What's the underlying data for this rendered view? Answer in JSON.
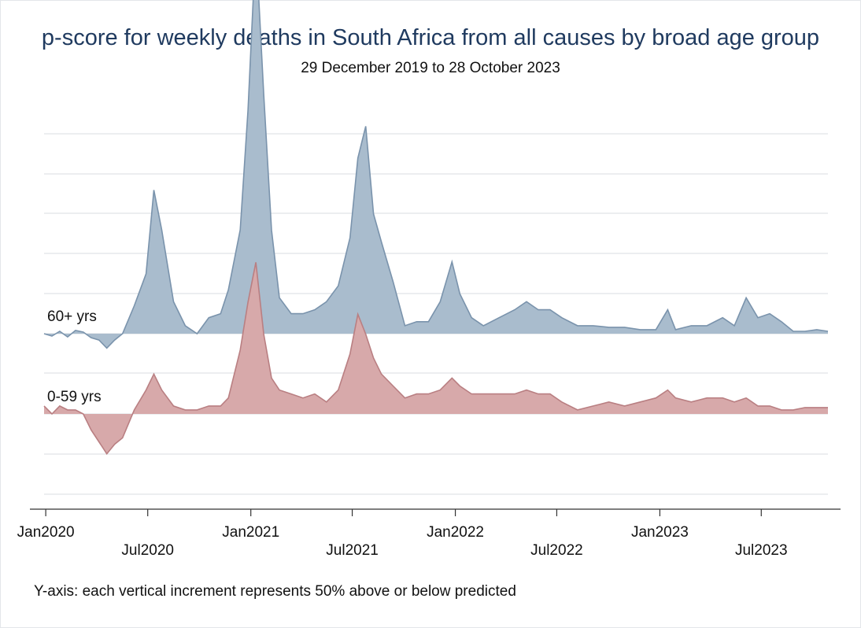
{
  "chart_data": {
    "type": "area",
    "title": "p-score for weekly deaths in South Africa from all causes by broad age group",
    "subtitle": "29 December 2019 to 28 October 2023",
    "note": "Y-axis: each vertical increment represents 50% above or below predicted",
    "x_range": [
      "2019-12-29",
      "2023-10-28"
    ],
    "x_ticks": [
      "Jan2020",
      "Jul2020",
      "Jan2021",
      "Jul2021",
      "Jan2022",
      "Jul2022",
      "Jan2023",
      "Jul2023"
    ],
    "y_increment_percent": 50,
    "grid": true,
    "series": [
      {
        "name": "60+ yrs",
        "color": "#a9bccd",
        "line_color": "#7a93ac",
        "points": [
          [
            "2019-12-29",
            0
          ],
          [
            "2020-01-12",
            -3
          ],
          [
            "2020-01-26",
            3
          ],
          [
            "2020-02-09",
            -4
          ],
          [
            "2020-02-23",
            4
          ],
          [
            "2020-03-08",
            2
          ],
          [
            "2020-03-22",
            -5
          ],
          [
            "2020-04-05",
            -8
          ],
          [
            "2020-04-19",
            -18
          ],
          [
            "2020-05-03",
            -8
          ],
          [
            "2020-05-17",
            0
          ],
          [
            "2020-06-07",
            35
          ],
          [
            "2020-06-28",
            75
          ],
          [
            "2020-07-12",
            180
          ],
          [
            "2020-07-26",
            130
          ],
          [
            "2020-08-16",
            40
          ],
          [
            "2020-09-06",
            10
          ],
          [
            "2020-09-27",
            0
          ],
          [
            "2020-10-18",
            20
          ],
          [
            "2020-11-08",
            25
          ],
          [
            "2020-11-22",
            55
          ],
          [
            "2020-12-13",
            130
          ],
          [
            "2020-12-27",
            280
          ],
          [
            "2021-01-10",
            490
          ],
          [
            "2021-01-24",
            300
          ],
          [
            "2021-02-07",
            130
          ],
          [
            "2021-02-21",
            45
          ],
          [
            "2021-03-14",
            25
          ],
          [
            "2021-04-04",
            25
          ],
          [
            "2021-04-25",
            30
          ],
          [
            "2021-05-16",
            40
          ],
          [
            "2021-06-06",
            60
          ],
          [
            "2021-06-27",
            120
          ],
          [
            "2021-07-11",
            220
          ],
          [
            "2021-07-25",
            260
          ],
          [
            "2021-08-08",
            150
          ],
          [
            "2021-08-22",
            115
          ],
          [
            "2021-09-12",
            65
          ],
          [
            "2021-10-03",
            10
          ],
          [
            "2021-10-24",
            15
          ],
          [
            "2021-11-14",
            15
          ],
          [
            "2021-12-05",
            40
          ],
          [
            "2021-12-26",
            90
          ],
          [
            "2022-01-09",
            50
          ],
          [
            "2022-01-30",
            20
          ],
          [
            "2022-02-20",
            10
          ],
          [
            "2022-03-20",
            20
          ],
          [
            "2022-04-17",
            30
          ],
          [
            "2022-05-08",
            40
          ],
          [
            "2022-05-29",
            30
          ],
          [
            "2022-06-19",
            30
          ],
          [
            "2022-07-10",
            20
          ],
          [
            "2022-08-07",
            10
          ],
          [
            "2022-09-04",
            10
          ],
          [
            "2022-10-02",
            8
          ],
          [
            "2022-10-30",
            8
          ],
          [
            "2022-11-27",
            5
          ],
          [
            "2022-12-25",
            5
          ],
          [
            "2023-01-15",
            30
          ],
          [
            "2023-01-29",
            5
          ],
          [
            "2023-02-26",
            10
          ],
          [
            "2023-03-26",
            10
          ],
          [
            "2023-04-23",
            20
          ],
          [
            "2023-05-14",
            10
          ],
          [
            "2023-06-04",
            45
          ],
          [
            "2023-06-25",
            20
          ],
          [
            "2023-07-16",
            25
          ],
          [
            "2023-08-06",
            15
          ],
          [
            "2023-08-27",
            3
          ],
          [
            "2023-09-17",
            3
          ],
          [
            "2023-10-08",
            5
          ],
          [
            "2023-10-28",
            3
          ]
        ]
      },
      {
        "name": "0-59 yrs",
        "color": "#d7a9aa",
        "line_color": "#b97f82",
        "points": [
          [
            "2019-12-29",
            10
          ],
          [
            "2020-01-12",
            0
          ],
          [
            "2020-01-26",
            10
          ],
          [
            "2020-02-09",
            5
          ],
          [
            "2020-02-23",
            5
          ],
          [
            "2020-03-08",
            0
          ],
          [
            "2020-03-22",
            -20
          ],
          [
            "2020-04-05",
            -35
          ],
          [
            "2020-04-19",
            -50
          ],
          [
            "2020-05-03",
            -38
          ],
          [
            "2020-05-17",
            -30
          ],
          [
            "2020-06-07",
            5
          ],
          [
            "2020-06-28",
            30
          ],
          [
            "2020-07-12",
            50
          ],
          [
            "2020-07-26",
            30
          ],
          [
            "2020-08-16",
            10
          ],
          [
            "2020-09-06",
            5
          ],
          [
            "2020-09-27",
            5
          ],
          [
            "2020-10-18",
            10
          ],
          [
            "2020-11-08",
            10
          ],
          [
            "2020-11-22",
            20
          ],
          [
            "2020-12-13",
            80
          ],
          [
            "2020-12-27",
            140
          ],
          [
            "2021-01-10",
            190
          ],
          [
            "2021-01-24",
            100
          ],
          [
            "2021-02-07",
            45
          ],
          [
            "2021-02-21",
            30
          ],
          [
            "2021-03-14",
            25
          ],
          [
            "2021-04-04",
            20
          ],
          [
            "2021-04-25",
            25
          ],
          [
            "2021-05-16",
            15
          ],
          [
            "2021-06-06",
            30
          ],
          [
            "2021-06-27",
            75
          ],
          [
            "2021-07-11",
            125
          ],
          [
            "2021-07-25",
            100
          ],
          [
            "2021-08-08",
            70
          ],
          [
            "2021-08-22",
            50
          ],
          [
            "2021-09-12",
            35
          ],
          [
            "2021-10-03",
            20
          ],
          [
            "2021-10-24",
            25
          ],
          [
            "2021-11-14",
            25
          ],
          [
            "2021-12-05",
            30
          ],
          [
            "2021-12-26",
            45
          ],
          [
            "2022-01-09",
            35
          ],
          [
            "2022-01-30",
            25
          ],
          [
            "2022-02-20",
            25
          ],
          [
            "2022-03-20",
            25
          ],
          [
            "2022-04-17",
            25
          ],
          [
            "2022-05-08",
            30
          ],
          [
            "2022-05-29",
            25
          ],
          [
            "2022-06-19",
            25
          ],
          [
            "2022-07-10",
            15
          ],
          [
            "2022-08-07",
            5
          ],
          [
            "2022-09-04",
            10
          ],
          [
            "2022-10-02",
            15
          ],
          [
            "2022-10-30",
            10
          ],
          [
            "2022-11-27",
            15
          ],
          [
            "2022-12-25",
            20
          ],
          [
            "2023-01-15",
            30
          ],
          [
            "2023-01-29",
            20
          ],
          [
            "2023-02-26",
            15
          ],
          [
            "2023-03-26",
            20
          ],
          [
            "2023-04-23",
            20
          ],
          [
            "2023-05-14",
            15
          ],
          [
            "2023-06-04",
            20
          ],
          [
            "2023-06-25",
            10
          ],
          [
            "2023-07-16",
            10
          ],
          [
            "2023-08-06",
            5
          ],
          [
            "2023-08-27",
            5
          ],
          [
            "2023-09-17",
            8
          ],
          [
            "2023-10-08",
            8
          ],
          [
            "2023-10-28",
            8
          ]
        ]
      }
    ]
  }
}
